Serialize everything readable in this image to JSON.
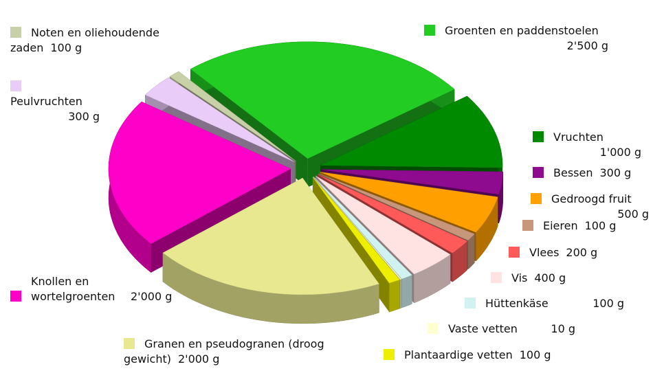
{
  "chart_data": {
    "type": "pie",
    "categories": [
      "Groenten en paddenstoelen",
      "Vruchten",
      "Bessen",
      "Gedroogd fruit",
      "Eieren",
      "Vlees",
      "Vis",
      "Hüttenkäse",
      "Vaste vetten",
      "Plantaardige vetten",
      "Granen en pseudogranen (droog gewicht)",
      "Knollen en wortelgroenten",
      "Peulvruchten",
      "Noten en oliehoudende zaden"
    ],
    "values": [
      2500,
      1000,
      300,
      500,
      100,
      200,
      400,
      100,
      10,
      100,
      2000,
      2000,
      300,
      100
    ],
    "value_labels": [
      "2'500 g",
      "1'000 g",
      "300 g",
      "500 g",
      "100 g",
      "200 g",
      "400 g",
      "100 g",
      "10 g",
      "100 g",
      "2'000 g",
      "2'000 g",
      "300 g",
      "100 g"
    ],
    "colors": [
      "#22cc22",
      "#008a00",
      "#8e0a8e",
      "#ffa000",
      "#c8967a",
      "#ff5a5a",
      "#ffe2e2",
      "#d2f2f2",
      "#ffffd2",
      "#eeee00",
      "#e8e890",
      "#ff00c8",
      "#eaccf8",
      "#c8d0a8"
    ]
  }
}
